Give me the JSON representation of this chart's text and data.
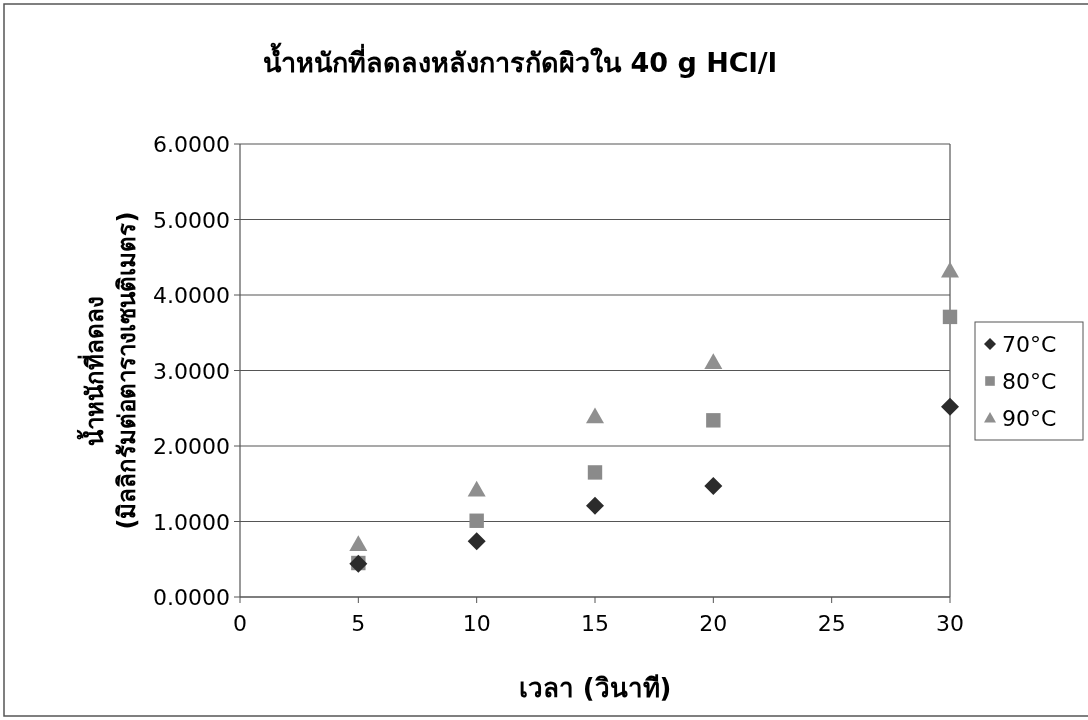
{
  "chart_data": {
    "type": "scatter",
    "title": "น้ำหนักที่ลดลงหลังการกัดผิวใน 40 g HCl/l",
    "xlabel": "เวลา (วินาที)",
    "ylabel": "น้ำหนักที่ลดลง\n(มิลลิกรัมต่อตารางเซนติเมตร)",
    "x": [
      5,
      10,
      15,
      20,
      30
    ],
    "series": [
      {
        "name": "70°C",
        "color": "#2b2b2b",
        "marker": "diamond",
        "values": [
          0.44,
          0.74,
          1.21,
          1.47,
          2.52
        ]
      },
      {
        "name": "80°C",
        "color": "#8a8a8a",
        "marker": "square",
        "values": [
          0.45,
          1.01,
          1.65,
          2.34,
          3.71
        ]
      },
      {
        "name": "90°C",
        "color": "#8f8f8f",
        "marker": "triangle",
        "values": [
          0.7,
          1.42,
          2.39,
          3.11,
          4.32
        ]
      }
    ],
    "xlim": [
      0,
      30
    ],
    "xticks": [
      0,
      5,
      10,
      15,
      20,
      25,
      30
    ],
    "ylim": [
      0,
      6
    ],
    "yticks": [
      {
        "value": 0,
        "label": "0.0000"
      },
      {
        "value": 1,
        "label": "1.0000"
      },
      {
        "value": 2,
        "label": "2.0000"
      },
      {
        "value": 3,
        "label": "3.0000"
      },
      {
        "value": 4,
        "label": "4.0000"
      },
      {
        "value": 5,
        "label": "5.0000"
      },
      {
        "value": 6,
        "label": "6.0000"
      }
    ],
    "grid": "y",
    "legend": "right"
  }
}
